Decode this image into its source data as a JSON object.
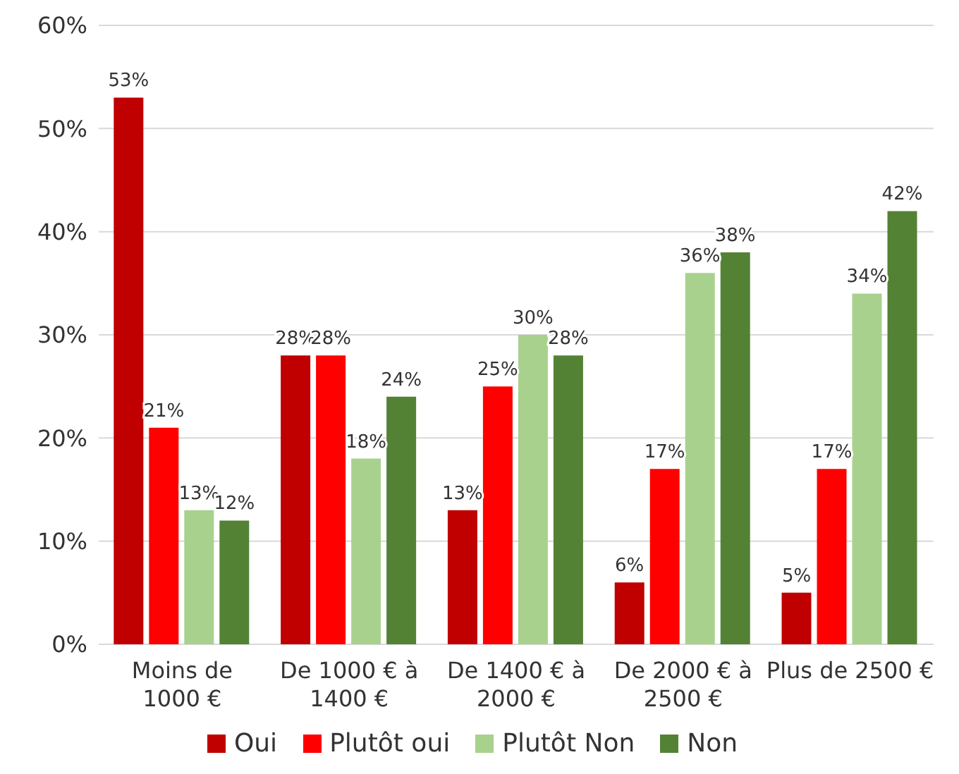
{
  "chart_data": {
    "type": "bar",
    "categories": [
      "Moins de\n1000 €",
      "De 1000 € à\n1400 €",
      "De 1400 € à\n2000 €",
      "De 2000 € à\n2500 €",
      "Plus de 2500 €"
    ],
    "series": [
      {
        "name": "Oui",
        "color": "#c00000",
        "values": [
          53,
          28,
          13,
          6,
          5
        ],
        "value_labels": [
          "53%",
          "28%",
          "13%",
          "6%",
          "5%"
        ]
      },
      {
        "name": "Plutôt oui",
        "color": "#ff0000",
        "values": [
          21,
          28,
          25,
          17,
          17
        ],
        "value_labels": [
          "21%",
          "28%",
          "25%",
          "17%",
          "17%"
        ]
      },
      {
        "name": "Plutôt Non",
        "color": "#a9d18e",
        "values": [
          13,
          18,
          30,
          36,
          34
        ],
        "value_labels": [
          "13%",
          "18%",
          "30%",
          "36%",
          "34%"
        ]
      },
      {
        "name": "Non",
        "color": "#548235",
        "values": [
          12,
          24,
          28,
          38,
          42
        ],
        "value_labels": [
          "12%",
          "24%",
          "28%",
          "38%",
          "42%"
        ]
      }
    ],
    "ylim": [
      0,
      60
    ],
    "yticks": [
      {
        "value": 0,
        "label": "0%"
      },
      {
        "value": 10,
        "label": "10%"
      },
      {
        "value": 20,
        "label": "20%"
      },
      {
        "value": 30,
        "label": "30%"
      },
      {
        "value": 40,
        "label": "40%"
      },
      {
        "value": 50,
        "label": "50%"
      },
      {
        "value": 60,
        "label": "60%"
      }
    ],
    "grid": "y",
    "legend": "bottom"
  }
}
